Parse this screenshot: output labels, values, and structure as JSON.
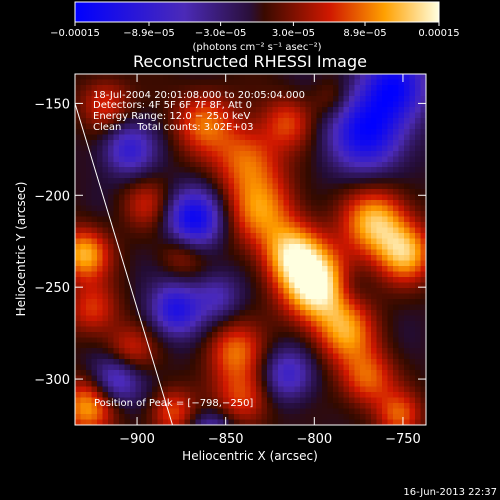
{
  "chart_data": {
    "type": "heatmap",
    "title": "Reconstructed RHESSI Image",
    "xlabel": "Heliocentric X (arcsec)",
    "ylabel": "Heliocentric Y (arcsec)",
    "xlim": [
      -935,
      -737
    ],
    "ylim": [
      -325,
      -134
    ],
    "x_ticks": [
      -900,
      -850,
      -800,
      -750
    ],
    "x_tick_labels": [
      "−900",
      "−850",
      "−800",
      "−750"
    ],
    "y_ticks": [
      -150,
      -200,
      -250,
      -300
    ],
    "y_tick_labels": [
      "−150",
      "−200",
      "−250",
      "−300"
    ],
    "colorbar": {
      "min": -0.00015,
      "max": 0.00015,
      "tick_labels": [
        "−0.00015",
        "−8.9e−05",
        "−3.0e−05",
        "3.0e−05",
        "8.9e−05",
        "0.00015"
      ],
      "tick_values": [
        -0.00015,
        -8.9e-05,
        -3e-05,
        3e-05,
        8.9e-05,
        0.00015
      ],
      "units": "(photons cm⁻² s⁻¹ asec⁻²)"
    },
    "annotations": [
      "18-Jul-2004 20:01:08.000 to 20:05:04.000",
      "Detectors: 4F 5F 6F 7F 8F, Att 0",
      "Energy Range: 12.0 − 25.0 keV",
      "Clean     Total counts: 3.02E+03"
    ],
    "peak_label": "Position of Peak = [−798,−250]",
    "peak": [
      -798,
      -250
    ],
    "limb_line": [
      [
        -935,
        -150
      ],
      [
        -880,
        -325
      ]
    ],
    "blobs": [
      {
        "x": -798,
        "y": -250,
        "v": 1.0,
        "s": 14
      },
      {
        "x": -812,
        "y": -232,
        "v": 0.75,
        "s": 12
      },
      {
        "x": -765,
        "y": -215,
        "v": 0.8,
        "s": 13
      },
      {
        "x": -748,
        "y": -232,
        "v": 0.7,
        "s": 11
      },
      {
        "x": -830,
        "y": -208,
        "v": 0.6,
        "s": 14
      },
      {
        "x": -838,
        "y": -180,
        "v": 0.55,
        "s": 13
      },
      {
        "x": -815,
        "y": -160,
        "v": 0.45,
        "s": 10
      },
      {
        "x": -862,
        "y": -160,
        "v": 0.55,
        "s": 12
      },
      {
        "x": -918,
        "y": -150,
        "v": 0.45,
        "s": 10
      },
      {
        "x": -930,
        "y": -232,
        "v": 0.75,
        "s": 10
      },
      {
        "x": -925,
        "y": -262,
        "v": 0.45,
        "s": 10
      },
      {
        "x": -895,
        "y": -205,
        "v": 0.35,
        "s": 10
      },
      {
        "x": -875,
        "y": -232,
        "v": 0.3,
        "s": 9
      },
      {
        "x": -782,
        "y": -275,
        "v": 0.6,
        "s": 12
      },
      {
        "x": -770,
        "y": -300,
        "v": 0.55,
        "s": 11
      },
      {
        "x": -845,
        "y": -285,
        "v": 0.55,
        "s": 11
      },
      {
        "x": -840,
        "y": -310,
        "v": 0.5,
        "s": 11
      },
      {
        "x": -905,
        "y": -285,
        "v": 0.45,
        "s": 10
      },
      {
        "x": -928,
        "y": -315,
        "v": 0.7,
        "s": 11
      },
      {
        "x": -880,
        "y": -318,
        "v": 0.5,
        "s": 9
      },
      {
        "x": -752,
        "y": -320,
        "v": 0.5,
        "s": 9
      },
      {
        "x": -790,
        "y": -148,
        "v": 0.25,
        "s": 8
      },
      {
        "x": -770,
        "y": -165,
        "v": -0.9,
        "s": 15
      },
      {
        "x": -755,
        "y": -140,
        "v": -0.8,
        "s": 13
      },
      {
        "x": -868,
        "y": -213,
        "v": -0.9,
        "s": 11
      },
      {
        "x": -878,
        "y": -262,
        "v": -0.75,
        "s": 10
      },
      {
        "x": -912,
        "y": -300,
        "v": -0.65,
        "s": 10
      },
      {
        "x": -815,
        "y": -298,
        "v": -0.55,
        "s": 10
      },
      {
        "x": -855,
        "y": -255,
        "v": -0.4,
        "s": 9
      },
      {
        "x": -905,
        "y": -175,
        "v": -0.6,
        "s": 10
      },
      {
        "x": -780,
        "y": -250,
        "v": -0.2,
        "s": 8
      },
      {
        "x": -858,
        "y": -330,
        "v": -0.5,
        "s": 9
      }
    ]
  },
  "timestamp": "16-Jun-2013 22:37"
}
